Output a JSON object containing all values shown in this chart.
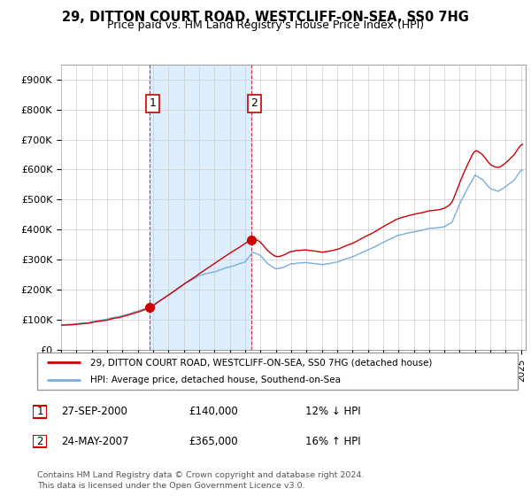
{
  "title": "29, DITTON COURT ROAD, WESTCLIFF-ON-SEA, SS0 7HG",
  "subtitle": "Price paid vs. HM Land Registry's House Price Index (HPI)",
  "hpi_label": "HPI: Average price, detached house, Southend-on-Sea",
  "price_label": "29, DITTON COURT ROAD, WESTCLIFF-ON-SEA, SS0 7HG (detached house)",
  "legend_entry1_date": "27-SEP-2000",
  "legend_entry1_price": "£140,000",
  "legend_entry1_hpi": "12% ↓ HPI",
  "legend_entry2_date": "24-MAY-2007",
  "legend_entry2_price": "£365,000",
  "legend_entry2_hpi": "16% ↑ HPI",
  "footer": "Contains HM Land Registry data © Crown copyright and database right 2024.\nThis data is licensed under the Open Government Licence v3.0.",
  "price_color": "#cc0000",
  "hpi_color": "#7aaddb",
  "shade_color": "#ddeeff",
  "background_color": "#ffffff",
  "grid_color": "#cccccc",
  "ylim": [
    0,
    950000
  ],
  "yticks": [
    0,
    100000,
    200000,
    300000,
    400000,
    500000,
    600000,
    700000,
    800000,
    900000
  ],
  "ytick_labels": [
    "£0",
    "£100K",
    "£200K",
    "£300K",
    "£400K",
    "£500K",
    "£600K",
    "£700K",
    "£800K",
    "£900K"
  ],
  "sale1_x": 2000.75,
  "sale1_y": 140000,
  "sale2_x": 2007.38,
  "sale2_y": 365000,
  "vline1_x": 2000.75,
  "vline2_x": 2007.38,
  "xlim_start": 1995,
  "xlim_end": 2025.3
}
